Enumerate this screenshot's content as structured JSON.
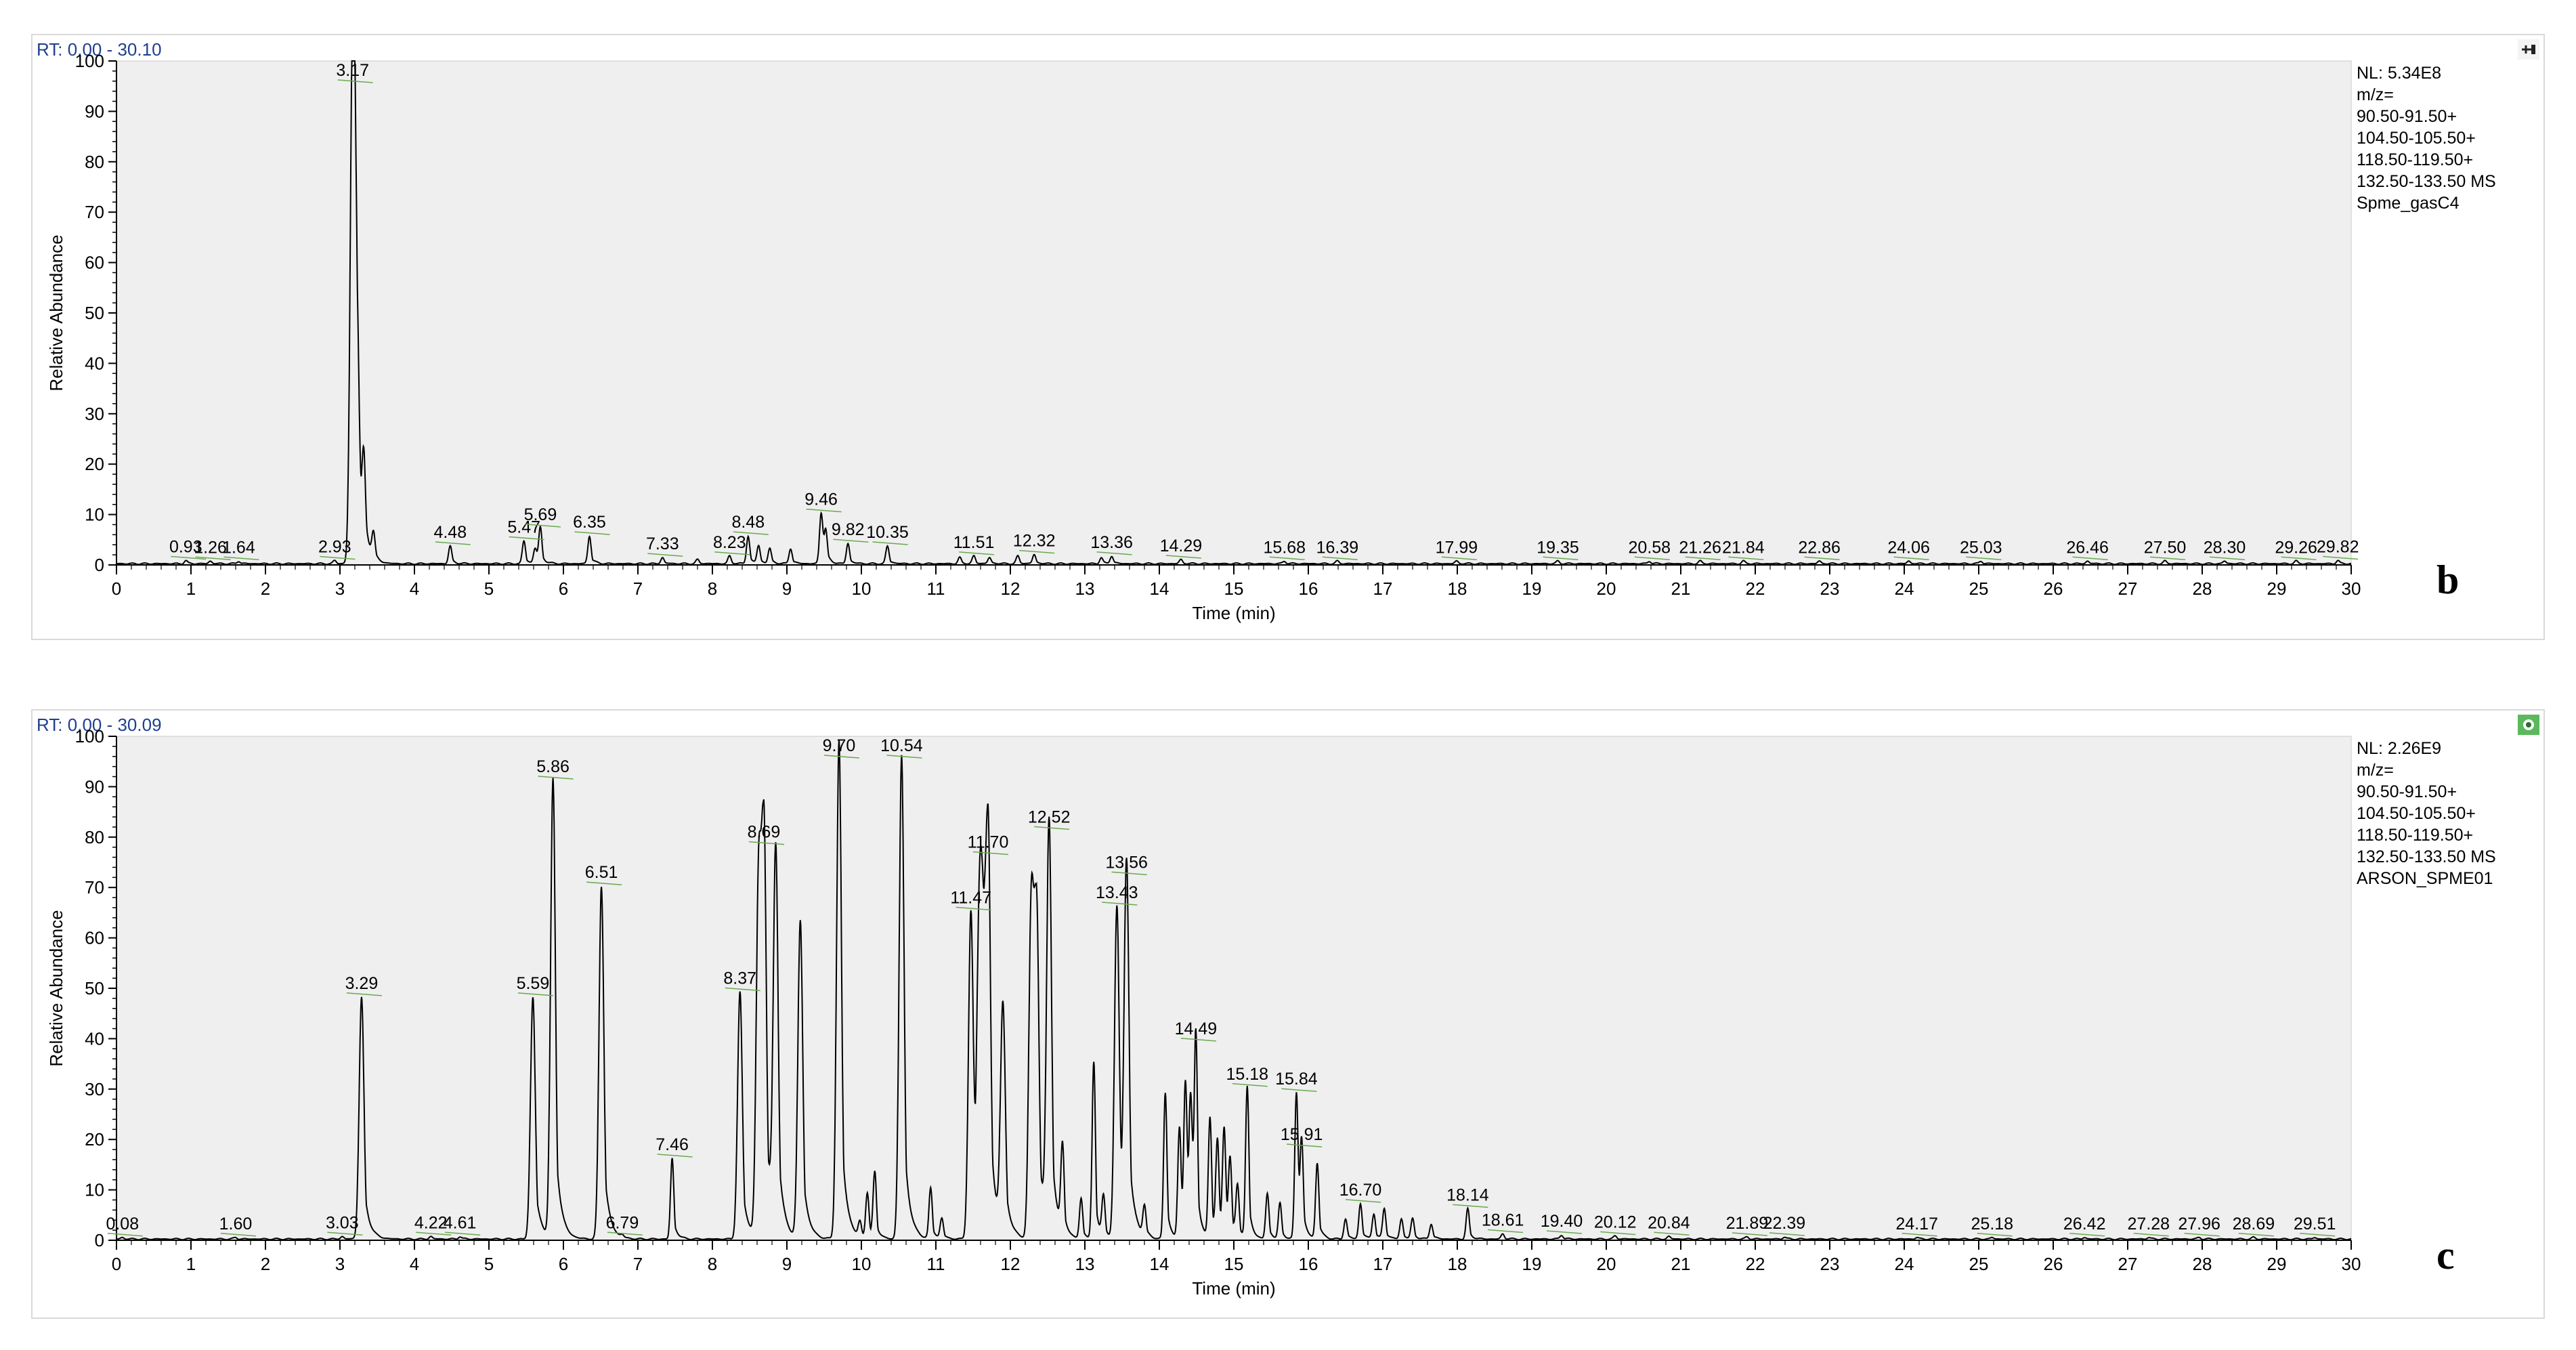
{
  "chart_data": [
    {
      "type": "line",
      "panel": "b",
      "rt_range": "RT: 0.00 - 30.10",
      "nl": "NL: 5.34E8",
      "mz_lines": [
        "m/z=",
        "90.50-91.50+",
        "104.50-105.50+",
        "118.50-119.50+",
        "132.50-133.50  MS",
        "Spme_gasC4"
      ],
      "xlabel": "Time (min)",
      "ylabel": "Relative Abundance",
      "xlim": [
        0,
        30
      ],
      "ylim": [
        0,
        100
      ],
      "x_ticks": [
        0,
        1,
        2,
        3,
        4,
        5,
        6,
        7,
        8,
        9,
        10,
        11,
        12,
        13,
        14,
        15,
        16,
        17,
        18,
        19,
        20,
        21,
        22,
        23,
        24,
        25,
        26,
        27,
        28,
        29,
        30
      ],
      "y_ticks": [
        0,
        10,
        20,
        30,
        40,
        50,
        60,
        70,
        80,
        90,
        100
      ],
      "peak_labels": [
        {
          "rt": "0.93",
          "x": 0.93,
          "y": 0.6
        },
        {
          "rt": "1.26",
          "x": 1.26,
          "y": 0.5
        },
        {
          "rt": "1.64",
          "x": 1.64,
          "y": 0.5
        },
        {
          "rt": "2.93",
          "x": 2.93,
          "y": 0.6
        },
        {
          "rt": "3.17",
          "x": 3.17,
          "y": 100
        },
        {
          "rt": "4.48",
          "x": 4.48,
          "y": 3.5
        },
        {
          "rt": "5.47",
          "x": 5.47,
          "y": 4.5
        },
        {
          "rt": "5.69",
          "x": 5.69,
          "y": 7
        },
        {
          "rt": "6.35",
          "x": 6.35,
          "y": 5.5
        },
        {
          "rt": "7.33",
          "x": 7.33,
          "y": 1.2
        },
        {
          "rt": "8.23",
          "x": 8.23,
          "y": 1.5
        },
        {
          "rt": "8.48",
          "x": 8.48,
          "y": 5.5
        },
        {
          "rt": "9.46",
          "x": 9.46,
          "y": 10
        },
        {
          "rt": "9.82",
          "x": 9.82,
          "y": 4
        },
        {
          "rt": "10.35",
          "x": 10.35,
          "y": 3.5
        },
        {
          "rt": "11.51",
          "x": 11.51,
          "y": 1.5
        },
        {
          "rt": "12.32",
          "x": 12.32,
          "y": 1.8
        },
        {
          "rt": "13.36",
          "x": 13.36,
          "y": 1.5
        },
        {
          "rt": "14.29",
          "x": 14.29,
          "y": 0.8
        },
        {
          "rt": "15.68",
          "x": 15.68,
          "y": 0.5
        },
        {
          "rt": "16.39",
          "x": 16.39,
          "y": 0.5
        },
        {
          "rt": "17.99",
          "x": 17.99,
          "y": 0.5
        },
        {
          "rt": "19.35",
          "x": 19.35,
          "y": 0.5
        },
        {
          "rt": "20.58",
          "x": 20.58,
          "y": 0.5
        },
        {
          "rt": "21.26",
          "x": 21.26,
          "y": 0.5
        },
        {
          "rt": "21.84",
          "x": 21.84,
          "y": 0.5
        },
        {
          "rt": "22.86",
          "x": 22.86,
          "y": 0.5
        },
        {
          "rt": "24.06",
          "x": 24.06,
          "y": 0.5
        },
        {
          "rt": "25.03",
          "x": 25.03,
          "y": 0.5
        },
        {
          "rt": "26.46",
          "x": 26.46,
          "y": 0.5
        },
        {
          "rt": "27.50",
          "x": 27.5,
          "y": 0.5
        },
        {
          "rt": "28.30",
          "x": 28.3,
          "y": 0.5
        },
        {
          "rt": "29.26",
          "x": 29.26,
          "y": 0.5
        },
        {
          "rt": "29.82",
          "x": 29.82,
          "y": 0.6
        }
      ],
      "extra_peaks": [
        {
          "x": 3.22,
          "y": 45
        },
        {
          "x": 3.32,
          "y": 15
        },
        {
          "x": 3.45,
          "y": 5
        },
        {
          "x": 5.62,
          "y": 3
        },
        {
          "x": 8.62,
          "y": 3.5
        },
        {
          "x": 8.77,
          "y": 3
        },
        {
          "x": 9.05,
          "y": 3
        },
        {
          "x": 9.52,
          "y": 6
        },
        {
          "x": 11.32,
          "y": 1.2
        },
        {
          "x": 11.72,
          "y": 1.2
        },
        {
          "x": 12.1,
          "y": 1.5
        },
        {
          "x": 13.22,
          "y": 1.2
        },
        {
          "x": 7.8,
          "y": 0.8
        }
      ],
      "panel_label": "b"
    },
    {
      "type": "line",
      "panel": "c",
      "rt_range": "RT: 0.00 - 30.09",
      "nl": "NL: 2.26E9",
      "mz_lines": [
        "m/z=",
        "90.50-91.50+",
        "104.50-105.50+",
        "118.50-119.50+",
        "132.50-133.50  MS",
        "ARSON_SPME01"
      ],
      "xlabel": "Time (min)",
      "ylabel": "Relative Abundance",
      "xlim": [
        0,
        30
      ],
      "ylim": [
        0,
        100
      ],
      "x_ticks": [
        0,
        1,
        2,
        3,
        4,
        5,
        6,
        7,
        8,
        9,
        10,
        11,
        12,
        13,
        14,
        15,
        16,
        17,
        18,
        19,
        20,
        21,
        22,
        23,
        24,
        25,
        26,
        27,
        28,
        29,
        30
      ],
      "y_ticks": [
        0,
        10,
        20,
        30,
        40,
        50,
        60,
        70,
        80,
        90,
        100
      ],
      "peak_labels": [
        {
          "rt": "0.08",
          "x": 0.08,
          "y": 0.3
        },
        {
          "rt": "1.60",
          "x": 1.6,
          "y": 0.3
        },
        {
          "rt": "3.03",
          "x": 3.03,
          "y": 0.5
        },
        {
          "rt": "3.29",
          "x": 3.29,
          "y": 48
        },
        {
          "rt": "4.22",
          "x": 4.22,
          "y": 0.5
        },
        {
          "rt": "4.61",
          "x": 4.61,
          "y": 0.5
        },
        {
          "rt": "5.59",
          "x": 5.59,
          "y": 48
        },
        {
          "rt": "5.86",
          "x": 5.86,
          "y": 91
        },
        {
          "rt": "6.51",
          "x": 6.51,
          "y": 70
        },
        {
          "rt": "6.79",
          "x": 6.79,
          "y": 0.5
        },
        {
          "rt": "7.46",
          "x": 7.46,
          "y": 16
        },
        {
          "rt": "8.37",
          "x": 8.37,
          "y": 49
        },
        {
          "rt": "8.69",
          "x": 8.69,
          "y": 78
        },
        {
          "rt": "9.70",
          "x": 9.7,
          "y": 99
        },
        {
          "rt": "10.54",
          "x": 10.54,
          "y": 96
        },
        {
          "rt": "11.47",
          "x": 11.47,
          "y": 65
        },
        {
          "rt": "11.70",
          "x": 11.7,
          "y": 76
        },
        {
          "rt": "12.52",
          "x": 12.52,
          "y": 81
        },
        {
          "rt": "13.43",
          "x": 13.43,
          "y": 66
        },
        {
          "rt": "13.56",
          "x": 13.56,
          "y": 72
        },
        {
          "rt": "14.49",
          "x": 14.49,
          "y": 39
        },
        {
          "rt": "15.18",
          "x": 15.18,
          "y": 30
        },
        {
          "rt": "15.84",
          "x": 15.84,
          "y": 29
        },
        {
          "rt": "15.91",
          "x": 15.91,
          "y": 18
        },
        {
          "rt": "16.70",
          "x": 16.7,
          "y": 7
        },
        {
          "rt": "18.14",
          "x": 18.14,
          "y": 6
        },
        {
          "rt": "18.61",
          "x": 18.61,
          "y": 1
        },
        {
          "rt": "19.40",
          "x": 19.4,
          "y": 0.8
        },
        {
          "rt": "20.12",
          "x": 20.12,
          "y": 0.6
        },
        {
          "rt": "20.84",
          "x": 20.84,
          "y": 0.5
        },
        {
          "rt": "21.89",
          "x": 21.89,
          "y": 0.4
        },
        {
          "rt": "22.39",
          "x": 22.39,
          "y": 0.4
        },
        {
          "rt": "24.17",
          "x": 24.17,
          "y": 0.3
        },
        {
          "rt": "25.18",
          "x": 25.18,
          "y": 0.3
        },
        {
          "rt": "26.42",
          "x": 26.42,
          "y": 0.3
        },
        {
          "rt": "27.28",
          "x": 27.28,
          "y": 0.3
        },
        {
          "rt": "27.96",
          "x": 27.96,
          "y": 0.3
        },
        {
          "rt": "28.69",
          "x": 28.69,
          "y": 0.3
        },
        {
          "rt": "29.51",
          "x": 29.51,
          "y": 0.3
        }
      ],
      "extra_peaks": [
        {
          "x": 8.62,
          "y": 70
        },
        {
          "x": 8.85,
          "y": 75
        },
        {
          "x": 9.18,
          "y": 63
        },
        {
          "x": 10.08,
          "y": 9
        },
        {
          "x": 10.18,
          "y": 13
        },
        {
          "x": 10.93,
          "y": 10
        },
        {
          "x": 11.58,
          "y": 52
        },
        {
          "x": 11.63,
          "y": 48
        },
        {
          "x": 11.9,
          "y": 45
        },
        {
          "x": 12.28,
          "y": 65
        },
        {
          "x": 12.35,
          "y": 62
        },
        {
          "x": 12.7,
          "y": 17
        },
        {
          "x": 12.95,
          "y": 8
        },
        {
          "x": 13.12,
          "y": 35
        },
        {
          "x": 13.25,
          "y": 8
        },
        {
          "x": 13.8,
          "y": 6
        },
        {
          "x": 14.08,
          "y": 29
        },
        {
          "x": 14.27,
          "y": 22
        },
        {
          "x": 14.35,
          "y": 30
        },
        {
          "x": 14.42,
          "y": 26
        },
        {
          "x": 14.68,
          "y": 24
        },
        {
          "x": 14.78,
          "y": 19
        },
        {
          "x": 14.87,
          "y": 21
        },
        {
          "x": 14.95,
          "y": 15
        },
        {
          "x": 15.05,
          "y": 10
        },
        {
          "x": 15.45,
          "y": 9
        },
        {
          "x": 15.62,
          "y": 7
        },
        {
          "x": 16.12,
          "y": 15
        },
        {
          "x": 16.5,
          "y": 4
        },
        {
          "x": 16.88,
          "y": 5
        },
        {
          "x": 17.02,
          "y": 6
        },
        {
          "x": 17.25,
          "y": 4
        },
        {
          "x": 17.4,
          "y": 4
        },
        {
          "x": 17.65,
          "y": 3
        },
        {
          "x": 11.08,
          "y": 4
        },
        {
          "x": 9.98,
          "y": 3
        }
      ],
      "panel_label": "c"
    }
  ],
  "colors": {
    "plot_bg": "#efefef",
    "trace": "#000000",
    "header_blue": "#1f3f8f",
    "label_leader": "#6aa84f",
    "icon_green": "#5cb85c"
  }
}
